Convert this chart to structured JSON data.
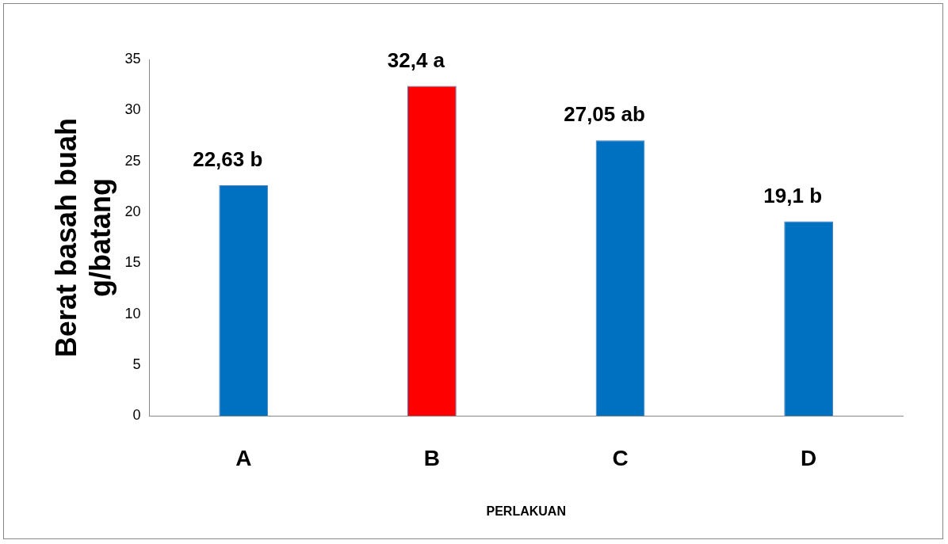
{
  "chart_data": {
    "type": "bar",
    "xlabel": "PERLAKUAN",
    "ylabel": "Berat basah buah g/batang",
    "categories": [
      "A",
      "B",
      "C",
      "D"
    ],
    "values": [
      22.63,
      32.4,
      27.05,
      19.1
    ],
    "colors": [
      "#0070c0",
      "#ff0000",
      "#0070c0",
      "#0070c0"
    ],
    "value_labels": [
      "22,63 b",
      "32,4 a",
      "27,05 ab",
      "19,1 b"
    ],
    "ylim": [
      0,
      35
    ],
    "yticks": [
      0,
      5,
      10,
      15,
      20,
      25,
      30,
      35
    ],
    "grid": false,
    "legend": false
  }
}
